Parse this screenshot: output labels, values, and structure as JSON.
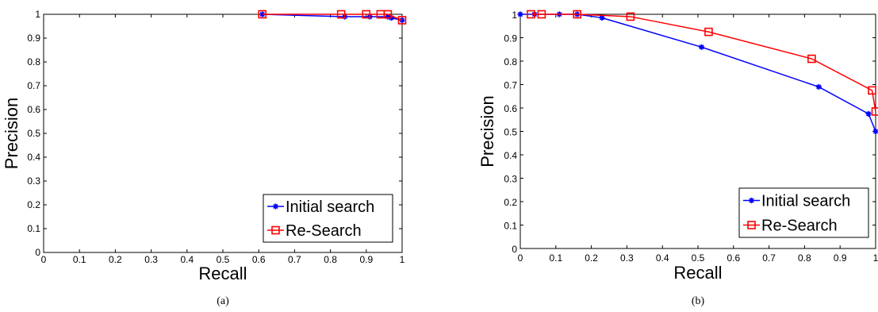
{
  "chart_data": [
    {
      "type": "line",
      "caption": "(a)",
      "xlabel": "Recall",
      "ylabel": "Precision",
      "xlim": [
        0,
        1
      ],
      "ylim": [
        0,
        1
      ],
      "xticks": [
        "0",
        "0.1",
        "0.2",
        "0.3",
        "0.4",
        "0.5",
        "0.6",
        "0.7",
        "0.8",
        "0.9",
        "1"
      ],
      "yticks": [
        "0",
        "0.1",
        "0.2",
        "0.3",
        "0.4",
        "0.5",
        "0.6",
        "0.7",
        "0.8",
        "0.9",
        "1"
      ],
      "grid": false,
      "legend_position": "bottom-right",
      "series": [
        {
          "name": "Initial search",
          "color": "#0000ff",
          "marker": "star",
          "x": [
            0.61,
            0.84,
            0.91,
            0.96,
            0.97,
            1.0
          ],
          "y": [
            1.0,
            0.99,
            0.99,
            0.99,
            0.985,
            0.975
          ]
        },
        {
          "name": "Re-Search",
          "color": "#ff0000",
          "marker": "square",
          "x": [
            0.61,
            0.83,
            0.9,
            0.94,
            0.96,
            1.0
          ],
          "y": [
            1.0,
            1.0,
            1.0,
            1.0,
            1.0,
            0.975
          ]
        }
      ]
    },
    {
      "type": "line",
      "caption": "(b)",
      "xlabel": "Recall",
      "ylabel": "Precision",
      "xlim": [
        0,
        1
      ],
      "ylim": [
        0,
        1
      ],
      "xticks": [
        "0",
        "0.1",
        "0.2",
        "0.3",
        "0.4",
        "0.5",
        "0.6",
        "0.7",
        "0.8",
        "0.9",
        "1"
      ],
      "yticks": [
        "0",
        "0.1",
        "0.2",
        "0.3",
        "0.4",
        "0.5",
        "0.6",
        "0.7",
        "0.8",
        "0.9",
        "1"
      ],
      "grid": false,
      "legend_position": "bottom-right",
      "series": [
        {
          "name": "Initial search",
          "color": "#0000ff",
          "marker": "star",
          "x": [
            0.0,
            0.04,
            0.11,
            0.16,
            0.23,
            0.51,
            0.84,
            0.98,
            1.0
          ],
          "y": [
            1.0,
            1.0,
            1.0,
            1.0,
            0.985,
            0.86,
            0.69,
            0.575,
            0.5
          ]
        },
        {
          "name": "Re-Search",
          "color": "#ff0000",
          "marker": "square",
          "x": [
            0.03,
            0.06,
            0.16,
            0.31,
            0.53,
            0.82,
            0.99,
            1.0
          ],
          "y": [
            1.0,
            1.0,
            1.0,
            0.99,
            0.925,
            0.81,
            0.675,
            0.585
          ]
        }
      ]
    }
  ]
}
